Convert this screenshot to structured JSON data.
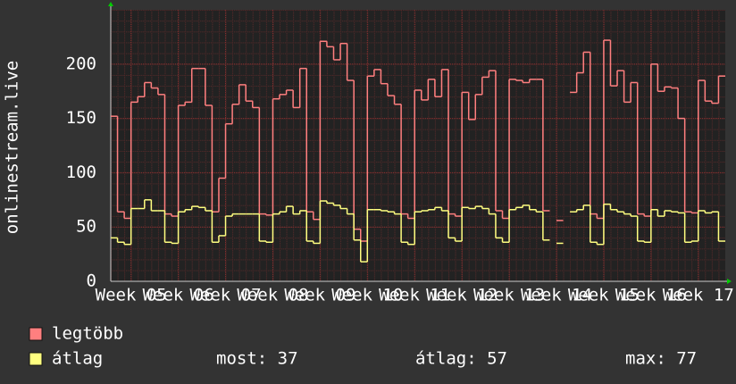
{
  "chart_data": {
    "type": "line",
    "y_label": "onlinestream.live",
    "x": [
      0,
      1,
      2,
      3,
      4,
      5,
      6,
      7,
      8,
      9,
      10,
      11,
      12,
      13,
      14,
      15,
      16,
      17,
      18,
      19,
      20,
      21,
      22,
      23,
      24,
      25,
      26,
      27,
      28,
      29,
      30,
      31,
      32,
      33,
      34,
      35,
      36,
      37,
      38,
      39,
      40,
      41,
      42,
      43,
      44,
      45,
      46,
      47,
      48,
      49,
      50,
      51,
      52,
      53,
      54,
      55,
      56,
      57,
      58,
      59,
      60,
      61,
      62,
      63,
      64,
      65,
      66,
      67,
      68,
      69,
      70,
      71,
      72,
      73,
      74,
      75,
      76,
      77,
      78,
      79,
      80,
      81,
      82,
      83,
      84,
      85,
      86,
      87,
      88,
      89,
      90
    ],
    "xlim": [
      0,
      91
    ],
    "xticks": [
      {
        "value": 3,
        "label": "Week 05"
      },
      {
        "value": 10,
        "label": "Week 06"
      },
      {
        "value": 17,
        "label": "Week 07"
      },
      {
        "value": 24,
        "label": "Week 08"
      },
      {
        "value": 31,
        "label": "Week 09"
      },
      {
        "value": 38,
        "label": "Week 10"
      },
      {
        "value": 45,
        "label": "Week 11"
      },
      {
        "value": 52,
        "label": "Week 12"
      },
      {
        "value": 59,
        "label": "Week 13"
      },
      {
        "value": 66,
        "label": "Week 14"
      },
      {
        "value": 73,
        "label": "Week 15"
      },
      {
        "value": 80,
        "label": "Week 16"
      },
      {
        "value": 87,
        "label": "Week 17"
      }
    ],
    "ylim": [
      0,
      250
    ],
    "yticks": [
      0,
      50,
      100,
      150,
      200
    ],
    "grid": true,
    "series": [
      {
        "name": "legtöbb",
        "color": "#ff7f7f",
        "values": [
          152,
          64,
          58,
          165,
          170,
          183,
          178,
          172,
          62,
          60,
          162,
          165,
          196,
          196,
          162,
          64,
          95,
          145,
          163,
          181,
          166,
          160,
          62,
          61,
          168,
          172,
          176,
          160,
          196,
          64,
          57,
          221,
          216,
          204,
          219,
          185,
          48,
          37,
          189,
          195,
          182,
          171,
          163,
          62,
          58,
          176,
          167,
          186,
          170,
          195,
          62,
          60,
          174,
          149,
          172,
          188,
          194,
          65,
          58,
          186,
          185,
          183,
          186,
          186,
          65,
          null,
          56,
          null,
          174,
          192,
          211,
          62,
          58,
          222,
          180,
          194,
          165,
          183,
          62,
          60,
          200,
          175,
          179,
          178,
          150,
          64,
          63,
          185,
          166,
          164,
          189
        ]
      },
      {
        "name": "átlag",
        "color": "#ffff80",
        "values": [
          40,
          36,
          34,
          67,
          67,
          75,
          65,
          65,
          36,
          35,
          64,
          66,
          69,
          68,
          65,
          36,
          42,
          60,
          62,
          62,
          62,
          62,
          37,
          36,
          62,
          64,
          69,
          62,
          65,
          37,
          35,
          74,
          72,
          70,
          67,
          62,
          38,
          18,
          66,
          66,
          65,
          64,
          62,
          36,
          34,
          64,
          65,
          66,
          68,
          65,
          40,
          37,
          68,
          67,
          69,
          67,
          62,
          40,
          36,
          66,
          68,
          70,
          66,
          64,
          38,
          null,
          35,
          null,
          64,
          66,
          70,
          36,
          34,
          71,
          66,
          64,
          62,
          60,
          37,
          36,
          66,
          60,
          65,
          64,
          63,
          36,
          37,
          65,
          63,
          64,
          37
        ]
      }
    ],
    "stats": [
      "most: 37",
      "átlag: 57",
      "max: 77"
    ]
  }
}
